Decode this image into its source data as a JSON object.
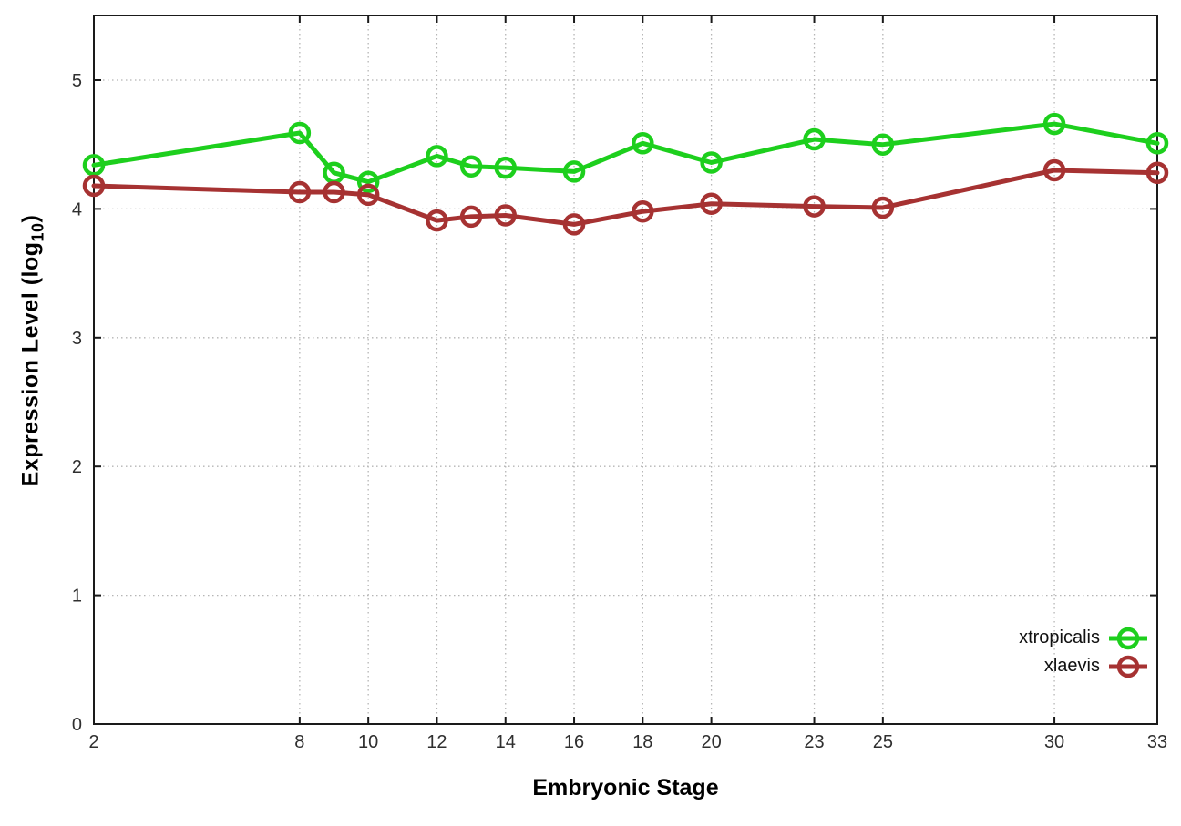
{
  "chart_data": {
    "type": "line",
    "title": "",
    "xlabel": "Embryonic Stage",
    "ylabel": "Expression Level (log10)",
    "ylabel_parts": {
      "main": "Expression Level (log",
      "sub": "10",
      "close": ")"
    },
    "xlim": [
      2,
      33
    ],
    "ylim": [
      0,
      5.5
    ],
    "x_ticks": [
      2,
      8,
      10,
      12,
      14,
      16,
      18,
      20,
      23,
      25,
      30,
      33
    ],
    "y_ticks": [
      0,
      1,
      2,
      3,
      4,
      5
    ],
    "grid": true,
    "grid_style": "dotted",
    "legend_position": "inside-bottom-right",
    "x": [
      2,
      8,
      9,
      10,
      12,
      13,
      14,
      16,
      18,
      20,
      23,
      25,
      30,
      33
    ],
    "series": [
      {
        "name": "xtropicalis",
        "color": "#1dcf1d",
        "marker": "open-circle",
        "values": [
          4.34,
          4.59,
          4.28,
          4.21,
          4.41,
          4.33,
          4.32,
          4.29,
          4.51,
          4.36,
          4.54,
          4.5,
          4.66,
          4.51
        ]
      },
      {
        "name": "xlaevis",
        "color": "#a63232",
        "marker": "open-circle",
        "values": [
          4.18,
          4.13,
          4.13,
          4.11,
          3.91,
          3.94,
          3.95,
          3.88,
          3.98,
          4.04,
          4.02,
          4.01,
          4.3,
          4.28
        ]
      }
    ],
    "colors": {
      "background": "#ffffff",
      "axis_border": "#1a1a1a",
      "grid": "#b5b5b5",
      "tick_text": "#2f2f2f"
    }
  }
}
